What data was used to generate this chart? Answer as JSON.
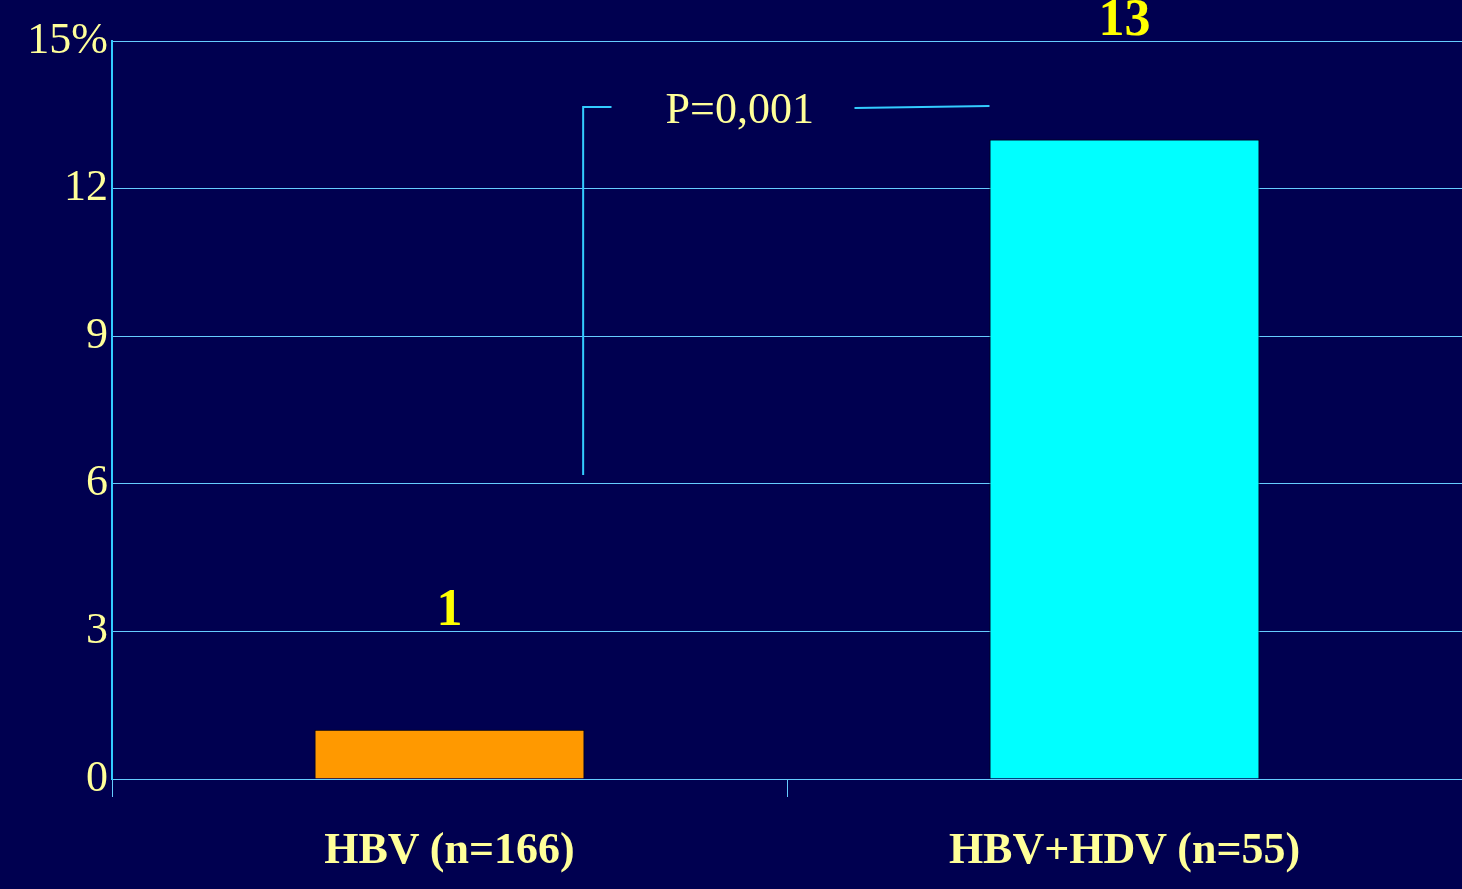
{
  "chart_data": {
    "type": "bar",
    "categories": [
      "HBV (n=166)",
      "HBV+HDV (n=55)"
    ],
    "values": [
      1,
      13
    ],
    "colors": [
      "#ff9900",
      "#00ffff"
    ],
    "ylim": [
      0,
      15
    ],
    "yticks": [
      0,
      3,
      6,
      9,
      12,
      {
        "value": 15,
        "label": "15%"
      }
    ],
    "grid": "y",
    "data_labels": true,
    "annotations": [
      "P=0,001"
    ]
  }
}
